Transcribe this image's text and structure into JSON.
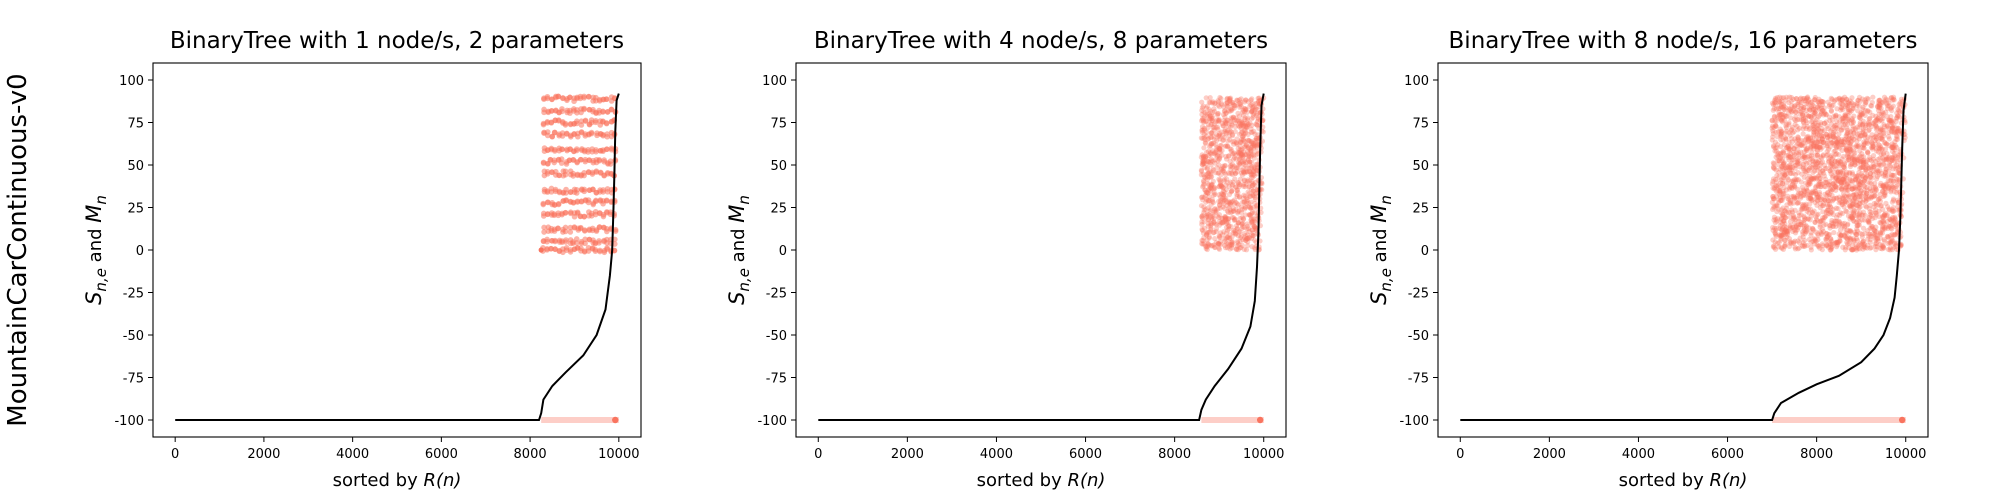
{
  "figure": {
    "row_label": "MountainCarContinuous-v0",
    "xlabel_prefix": "sorted by ",
    "xlabel_math": "R(n)",
    "ylabel": {
      "s": "S",
      "s_sub": "n,e",
      "and": " and ",
      "m": "M",
      "m_sub": "n"
    },
    "colors": {
      "scatter": "#f9745f",
      "line": "#000000",
      "axes": "#000000"
    }
  },
  "chart_data": [
    {
      "type": "scatter",
      "title": "BinaryTree with 1 node/s, 2 parameters",
      "xlim": [
        -500,
        10500
      ],
      "ylim": [
        -110,
        110
      ],
      "xticks": [
        0,
        2000,
        4000,
        6000,
        8000,
        10000
      ],
      "yticks": [
        -100,
        -75,
        -50,
        -25,
        0,
        25,
        50,
        75,
        100
      ],
      "series": [
        {
          "kind": "scatter",
          "x_range": [
            8250,
            10000
          ],
          "y_clusters": [
            0,
            5,
            12,
            21,
            28,
            35,
            45,
            52,
            59,
            68,
            75,
            82,
            89
          ],
          "baseline_y": -100,
          "baseline_x_range": [
            8250,
            10000
          ]
        },
        {
          "kind": "line",
          "points": [
            [
              0,
              -100
            ],
            [
              8200,
              -100
            ],
            [
              8250,
              -96
            ],
            [
              8300,
              -88
            ],
            [
              8500,
              -80
            ],
            [
              8800,
              -72
            ],
            [
              9200,
              -62
            ],
            [
              9500,
              -50
            ],
            [
              9700,
              -35
            ],
            [
              9800,
              -15
            ],
            [
              9850,
              0
            ],
            [
              9880,
              25
            ],
            [
              9900,
              45
            ],
            [
              9920,
              70
            ],
            [
              9950,
              88
            ],
            [
              10000,
              92
            ]
          ]
        }
      ]
    },
    {
      "type": "scatter",
      "title": "BinaryTree with 4 node/s, 8 parameters",
      "xlim": [
        -500,
        10500
      ],
      "ylim": [
        -110,
        110
      ],
      "xticks": [
        0,
        2000,
        4000,
        6000,
        8000,
        10000
      ],
      "yticks": [
        -100,
        -75,
        -50,
        -25,
        0,
        25,
        50,
        75,
        100
      ],
      "series": [
        {
          "kind": "scatter",
          "x_range": [
            8600,
            10000
          ],
          "y_range": [
            0,
            90
          ],
          "baseline_y": -100,
          "baseline_x_range": [
            8600,
            10000
          ]
        },
        {
          "kind": "line",
          "points": [
            [
              0,
              -100
            ],
            [
              8550,
              -100
            ],
            [
              8600,
              -94
            ],
            [
              8700,
              -88
            ],
            [
              8900,
              -80
            ],
            [
              9200,
              -70
            ],
            [
              9500,
              -58
            ],
            [
              9700,
              -45
            ],
            [
              9800,
              -30
            ],
            [
              9850,
              -10
            ],
            [
              9880,
              10
            ],
            [
              9900,
              35
            ],
            [
              9920,
              60
            ],
            [
              9950,
              85
            ],
            [
              10000,
              92
            ]
          ]
        }
      ]
    },
    {
      "type": "scatter",
      "title": "BinaryTree with 8 node/s, 16 parameters",
      "xlim": [
        -500,
        10500
      ],
      "ylim": [
        -110,
        110
      ],
      "xticks": [
        0,
        2000,
        4000,
        6000,
        8000,
        10000
      ],
      "yticks": [
        -100,
        -75,
        -50,
        -25,
        0,
        25,
        50,
        75,
        100
      ],
      "series": [
        {
          "kind": "scatter",
          "x_range": [
            7000,
            10000
          ],
          "y_range": [
            0,
            90
          ],
          "baseline_y": -100,
          "baseline_x_range": [
            7000,
            10000
          ]
        },
        {
          "kind": "line",
          "points": [
            [
              0,
              -100
            ],
            [
              7000,
              -100
            ],
            [
              7050,
              -96
            ],
            [
              7200,
              -90
            ],
            [
              7600,
              -84
            ],
            [
              8000,
              -79
            ],
            [
              8500,
              -74
            ],
            [
              9000,
              -66
            ],
            [
              9300,
              -58
            ],
            [
              9500,
              -50
            ],
            [
              9650,
              -40
            ],
            [
              9750,
              -28
            ],
            [
              9800,
              -15
            ],
            [
              9850,
              0
            ],
            [
              9880,
              20
            ],
            [
              9900,
              40
            ],
            [
              9920,
              60
            ],
            [
              9950,
              82
            ],
            [
              10000,
              92
            ]
          ]
        }
      ]
    }
  ]
}
